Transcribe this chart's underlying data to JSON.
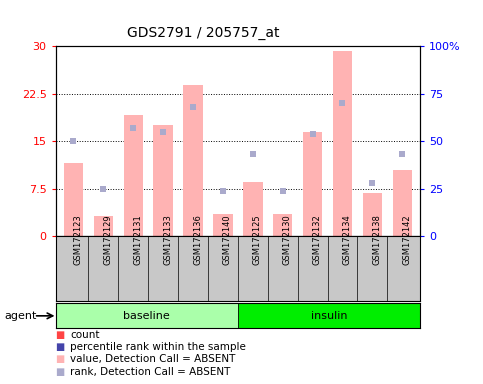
{
  "title": "GDS2791 / 205757_at",
  "samples": [
    "GSM172123",
    "GSM172129",
    "GSM172131",
    "GSM172133",
    "GSM172136",
    "GSM172140",
    "GSM172125",
    "GSM172130",
    "GSM172132",
    "GSM172134",
    "GSM172138",
    "GSM172142"
  ],
  "bar_values": [
    11.5,
    3.2,
    19.2,
    17.5,
    23.8,
    3.5,
    8.5,
    3.5,
    16.5,
    29.2,
    6.8,
    10.5
  ],
  "rank_values_pct": [
    50.0,
    25.0,
    57.0,
    55.0,
    68.0,
    24.0,
    43.0,
    24.0,
    54.0,
    70.0,
    28.0,
    43.0
  ],
  "ylim_left": [
    0,
    30
  ],
  "ylim_right": [
    0,
    100
  ],
  "yticks_left": [
    0,
    7.5,
    15,
    22.5,
    30
  ],
  "yticks_right": [
    0,
    25,
    50,
    75,
    100
  ],
  "ytick_labels_left": [
    "0",
    "7.5",
    "15",
    "22.5",
    "30"
  ],
  "ytick_labels_right": [
    "0",
    "25",
    "50",
    "75",
    "100%"
  ],
  "bar_color_absent": "#FFB3B3",
  "bar_color_present": "#FF4444",
  "rank_color_absent": "#AAAACC",
  "rank_color_present": "#4444AA",
  "baseline_color": "#AAFFAA",
  "insulin_color": "#00EE00",
  "label_bg_color": "#C8C8C8",
  "plot_bg": "white"
}
